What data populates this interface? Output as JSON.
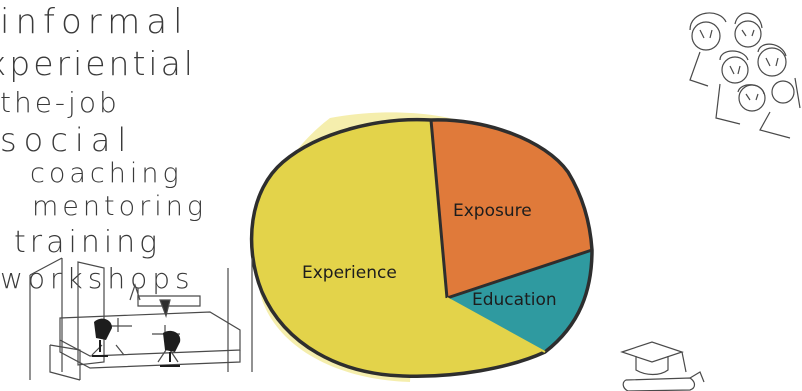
{
  "diagram": {
    "slices": [
      {
        "label": "Experience",
        "color": "#e3d34a"
      },
      {
        "label": "Exposure",
        "color": "#e07a3a"
      },
      {
        "label": "Education",
        "color": "#2f9aa0"
      }
    ],
    "left_notes": [
      "informal",
      "experiential",
      "on-the-job"
    ],
    "social_notes": [
      "social",
      "coaching",
      "mentoring"
    ],
    "training_notes": [
      "training",
      "workshops"
    ]
  }
}
